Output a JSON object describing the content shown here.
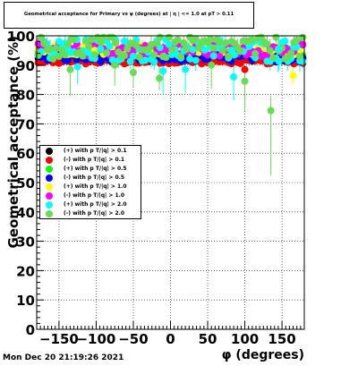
{
  "title": "Geometrical acceptance for Primary vs φ (degrees) at | η | <= 1.0 at pT > 0.11",
  "timestamp": "Mon Dec 20 21:19:26 2021",
  "chart_data": {
    "type": "scatter",
    "xlabel": "φ (degrees)",
    "ylabel": "Geometrical acceptance (%)",
    "xlim": [
      -180,
      180
    ],
    "ylim": [
      0,
      100
    ],
    "x_ticks": [
      -150,
      -100,
      -50,
      0,
      50,
      100,
      150
    ],
    "x_tick_labels": [
      "−150",
      "−100",
      "−50",
      "0",
      "50",
      "100",
      "150"
    ],
    "y_ticks": [
      0,
      10,
      20,
      30,
      40,
      50,
      60,
      70,
      80,
      90,
      100
    ],
    "y_tick_labels": [
      "0",
      "10",
      "20",
      "30",
      "40",
      "50",
      "60",
      "70",
      "80",
      "90",
      "100"
    ],
    "grid": true,
    "legend_position": "middle-left",
    "series": [
      {
        "name": "(+) with p T/|q| > 0.1",
        "color": "#000000",
        "base": 92.0,
        "spread": 0.8,
        "err": 0.6
      },
      {
        "name": "(-) with p T/|q| > 0.1",
        "color": "#ff0000",
        "base": 91.2,
        "spread": 0.8,
        "err": 0.6
      },
      {
        "name": "(+) with p T/|q| > 0.5",
        "color": "#00ff00",
        "base": 94.5,
        "spread": 1.6,
        "err": 1.0
      },
      {
        "name": "(-) with p T/|q| > 0.5",
        "color": "#0000ff",
        "base": 92.5,
        "spread": 1.4,
        "err": 1.0
      },
      {
        "name": "(+) with p T/|q| > 1.0",
        "color": "#ffff00",
        "base": 95.5,
        "spread": 2.0,
        "err": 1.5
      },
      {
        "name": "(-) with p T/|q| > 1.0",
        "color": "#ff00ff",
        "base": 95.2,
        "spread": 2.2,
        "err": 1.5
      },
      {
        "name": "(+) with p T/|q| > 2.0",
        "color": "#00ffff",
        "base": 95.0,
        "spread": 4.0,
        "err": 2.5
      },
      {
        "name": "(-) with p T/|q| > 2.0",
        "color": "#66dd55",
        "base": 96.0,
        "spread": 4.0,
        "err": 3.0
      }
    ],
    "outliers": [
      {
        "series": 7,
        "x": 135,
        "y": 74.5,
        "err_lo": 22,
        "err_hi": 5
      },
      {
        "series": 7,
        "x": 100,
        "y": 84.5,
        "err_lo": 10,
        "err_hi": 4
      },
      {
        "series": 6,
        "x": -10,
        "y": 88,
        "err_lo": 8,
        "err_hi": 4
      },
      {
        "series": 6,
        "x": 20,
        "y": 88.5,
        "err_lo": 8,
        "err_hi": 4
      },
      {
        "series": 6,
        "x": -125,
        "y": 89.5,
        "err_lo": 6,
        "err_hi": 4
      },
      {
        "series": 7,
        "x": -50,
        "y": 87.5,
        "err_lo": 5,
        "err_hi": 4
      },
      {
        "series": 7,
        "x": -135,
        "y": 88.5,
        "err_lo": 9,
        "err_hi": 4
      },
      {
        "series": 6,
        "x": 85,
        "y": 86,
        "err_lo": 8,
        "err_hi": 4
      },
      {
        "series": 4,
        "x": 165,
        "y": 86.5,
        "err_lo": 3,
        "err_hi": 3
      },
      {
        "series": 6,
        "x": 145,
        "y": 95.5,
        "err_lo": 8,
        "err_hi": 4
      },
      {
        "series": 7,
        "x": -15,
        "y": 85.5,
        "err_lo": 4,
        "err_hi": 4
      },
      {
        "series": 7,
        "x": 55,
        "y": 90,
        "err_lo": 8,
        "err_hi": 4
      },
      {
        "series": 7,
        "x": -75,
        "y": 90,
        "err_lo": 7,
        "err_hi": 4
      },
      {
        "series": 1,
        "x": 100,
        "y": 88.5,
        "err_lo": 1,
        "err_hi": 1
      }
    ]
  }
}
